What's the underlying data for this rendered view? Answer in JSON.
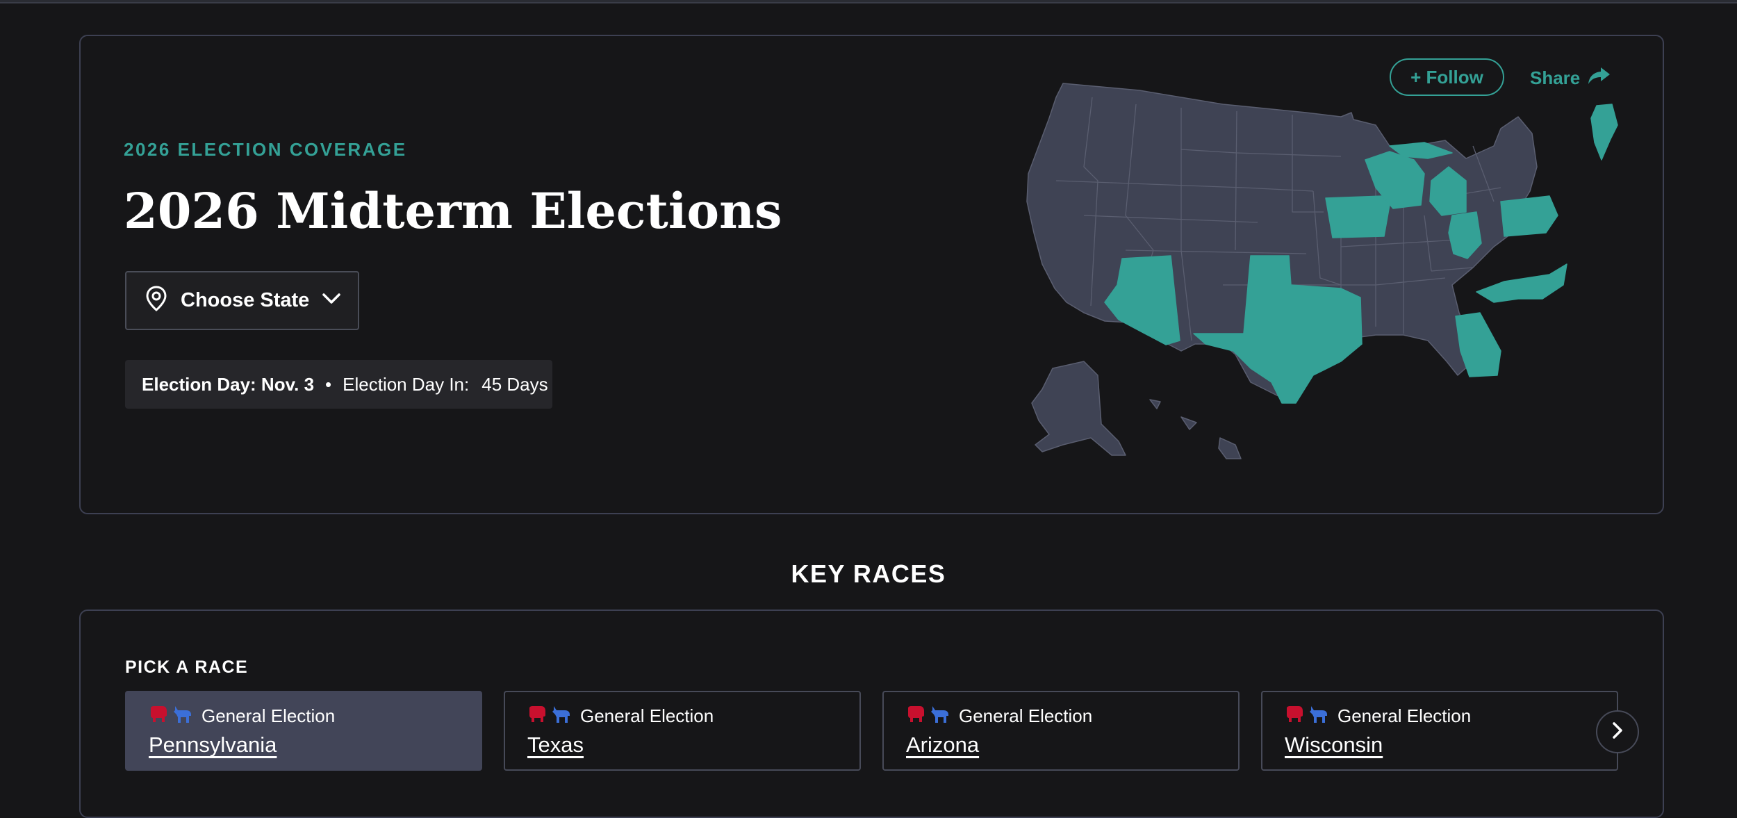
{
  "header": {
    "eyebrow": "2026 ELECTION COVERAGE",
    "title": "2026 Midterm Elections",
    "choose_state_label": "Choose State",
    "election_day_label": "Election Day: Nov. 3",
    "separator": "•",
    "countdown_label": "Election Day In:",
    "countdown_value": "45 Days",
    "follow_label": "+ Follow",
    "share_label": "Share"
  },
  "map": {
    "highlight_color": "#34a196",
    "base_color": "#3f4354",
    "highlighted_states": [
      "Arizona",
      "Texas",
      "Iowa",
      "Wisconsin",
      "Michigan",
      "Ohio",
      "Pennsylvania",
      "North Carolina",
      "Georgia",
      "Maine"
    ]
  },
  "key_races": {
    "heading": "KEY RACES",
    "pick_label": "PICK A RACE",
    "races": [
      {
        "type": "General Election",
        "state": "Pennsylvania",
        "active": true
      },
      {
        "type": "General Election",
        "state": "Texas",
        "active": false
      },
      {
        "type": "General Election",
        "state": "Arizona",
        "active": false
      },
      {
        "type": "General Election",
        "state": "Wisconsin",
        "active": false
      }
    ]
  },
  "colors": {
    "accent": "#34a196",
    "republican": "#c8102e",
    "democrat": "#3b6fd8",
    "background": "#161618"
  },
  "icons": [
    "map-pin-icon",
    "chevron-down-icon",
    "share-arrow-icon",
    "elephant-icon",
    "donkey-icon",
    "chevron-right-icon"
  ]
}
